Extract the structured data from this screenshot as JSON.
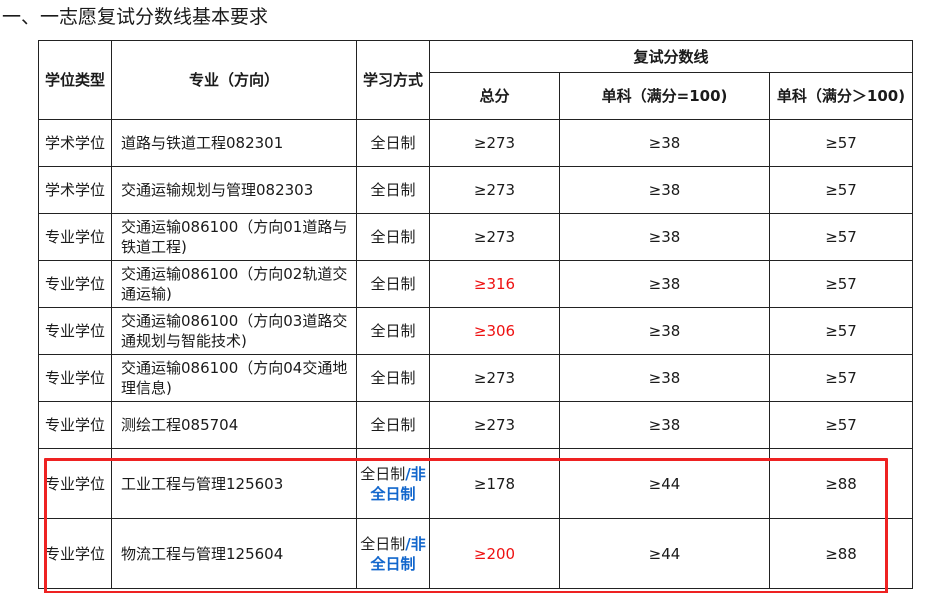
{
  "title": "一、一志愿复试分数线基本要求",
  "table": {
    "header": {
      "degree_type": "学位类型",
      "major": "专业（方向）",
      "study_mode": "学习方式",
      "score_group": "复试分数线",
      "total": "总分",
      "single_100": "单科（满分=100)",
      "single_gt100": "单科（满分＞100)"
    },
    "rows": [
      {
        "degree": "学术学位",
        "major": "道路与铁道工程082301",
        "mode": "全日制",
        "total": "≥273",
        "single_100": "≥38",
        "single_gt100": "≥57"
      },
      {
        "degree": "学术学位",
        "major": "交通运输规划与管理082303",
        "mode": "全日制",
        "total": "≥273",
        "single_100": "≥38",
        "single_gt100": "≥57"
      },
      {
        "degree": "专业学位",
        "major": "交通运输086100（方向01道路与铁道工程)",
        "mode": "全日制",
        "total": "≥273",
        "single_100": "≥38",
        "single_gt100": "≥57"
      },
      {
        "degree": "专业学位",
        "major": "交通运输086100（方向02轨道交通运输)",
        "mode": "全日制",
        "total": "≥316",
        "single_100": "≥38",
        "single_gt100": "≥57"
      },
      {
        "degree": "专业学位",
        "major": "交通运输086100（方向03道路交通规划与智能技术)",
        "mode": "全日制",
        "total": "≥306",
        "single_100": "≥38",
        "single_gt100": "≥57"
      },
      {
        "degree": "专业学位",
        "major": "交通运输086100（方向04交通地理信息)",
        "mode": "全日制",
        "total": "≥273",
        "single_100": "≥38",
        "single_gt100": "≥57"
      },
      {
        "degree": "专业学位",
        "major": "测绘工程085704",
        "mode": "全日制",
        "total": "≥273",
        "single_100": "≥38",
        "single_gt100": "≥57"
      },
      {
        "degree": "专业学位",
        "major": "工业工程与管理125603",
        "mode_part1": "全日制",
        "mode_part2": "/非全日制",
        "total": "≥178",
        "single_100": "≥44",
        "single_gt100": "≥88"
      },
      {
        "degree": "专业学位",
        "major": "物流工程与管理125604",
        "mode_part1": "全日制",
        "mode_part2": "/非全日制",
        "total": "≥200",
        "single_100": "≥44",
        "single_gt100": "≥88"
      }
    ]
  },
  "colors": {
    "text": "#1a1a1a",
    "highlight_red": "#ee1111",
    "mode_blue": "#1166cc",
    "border": "#222222"
  }
}
